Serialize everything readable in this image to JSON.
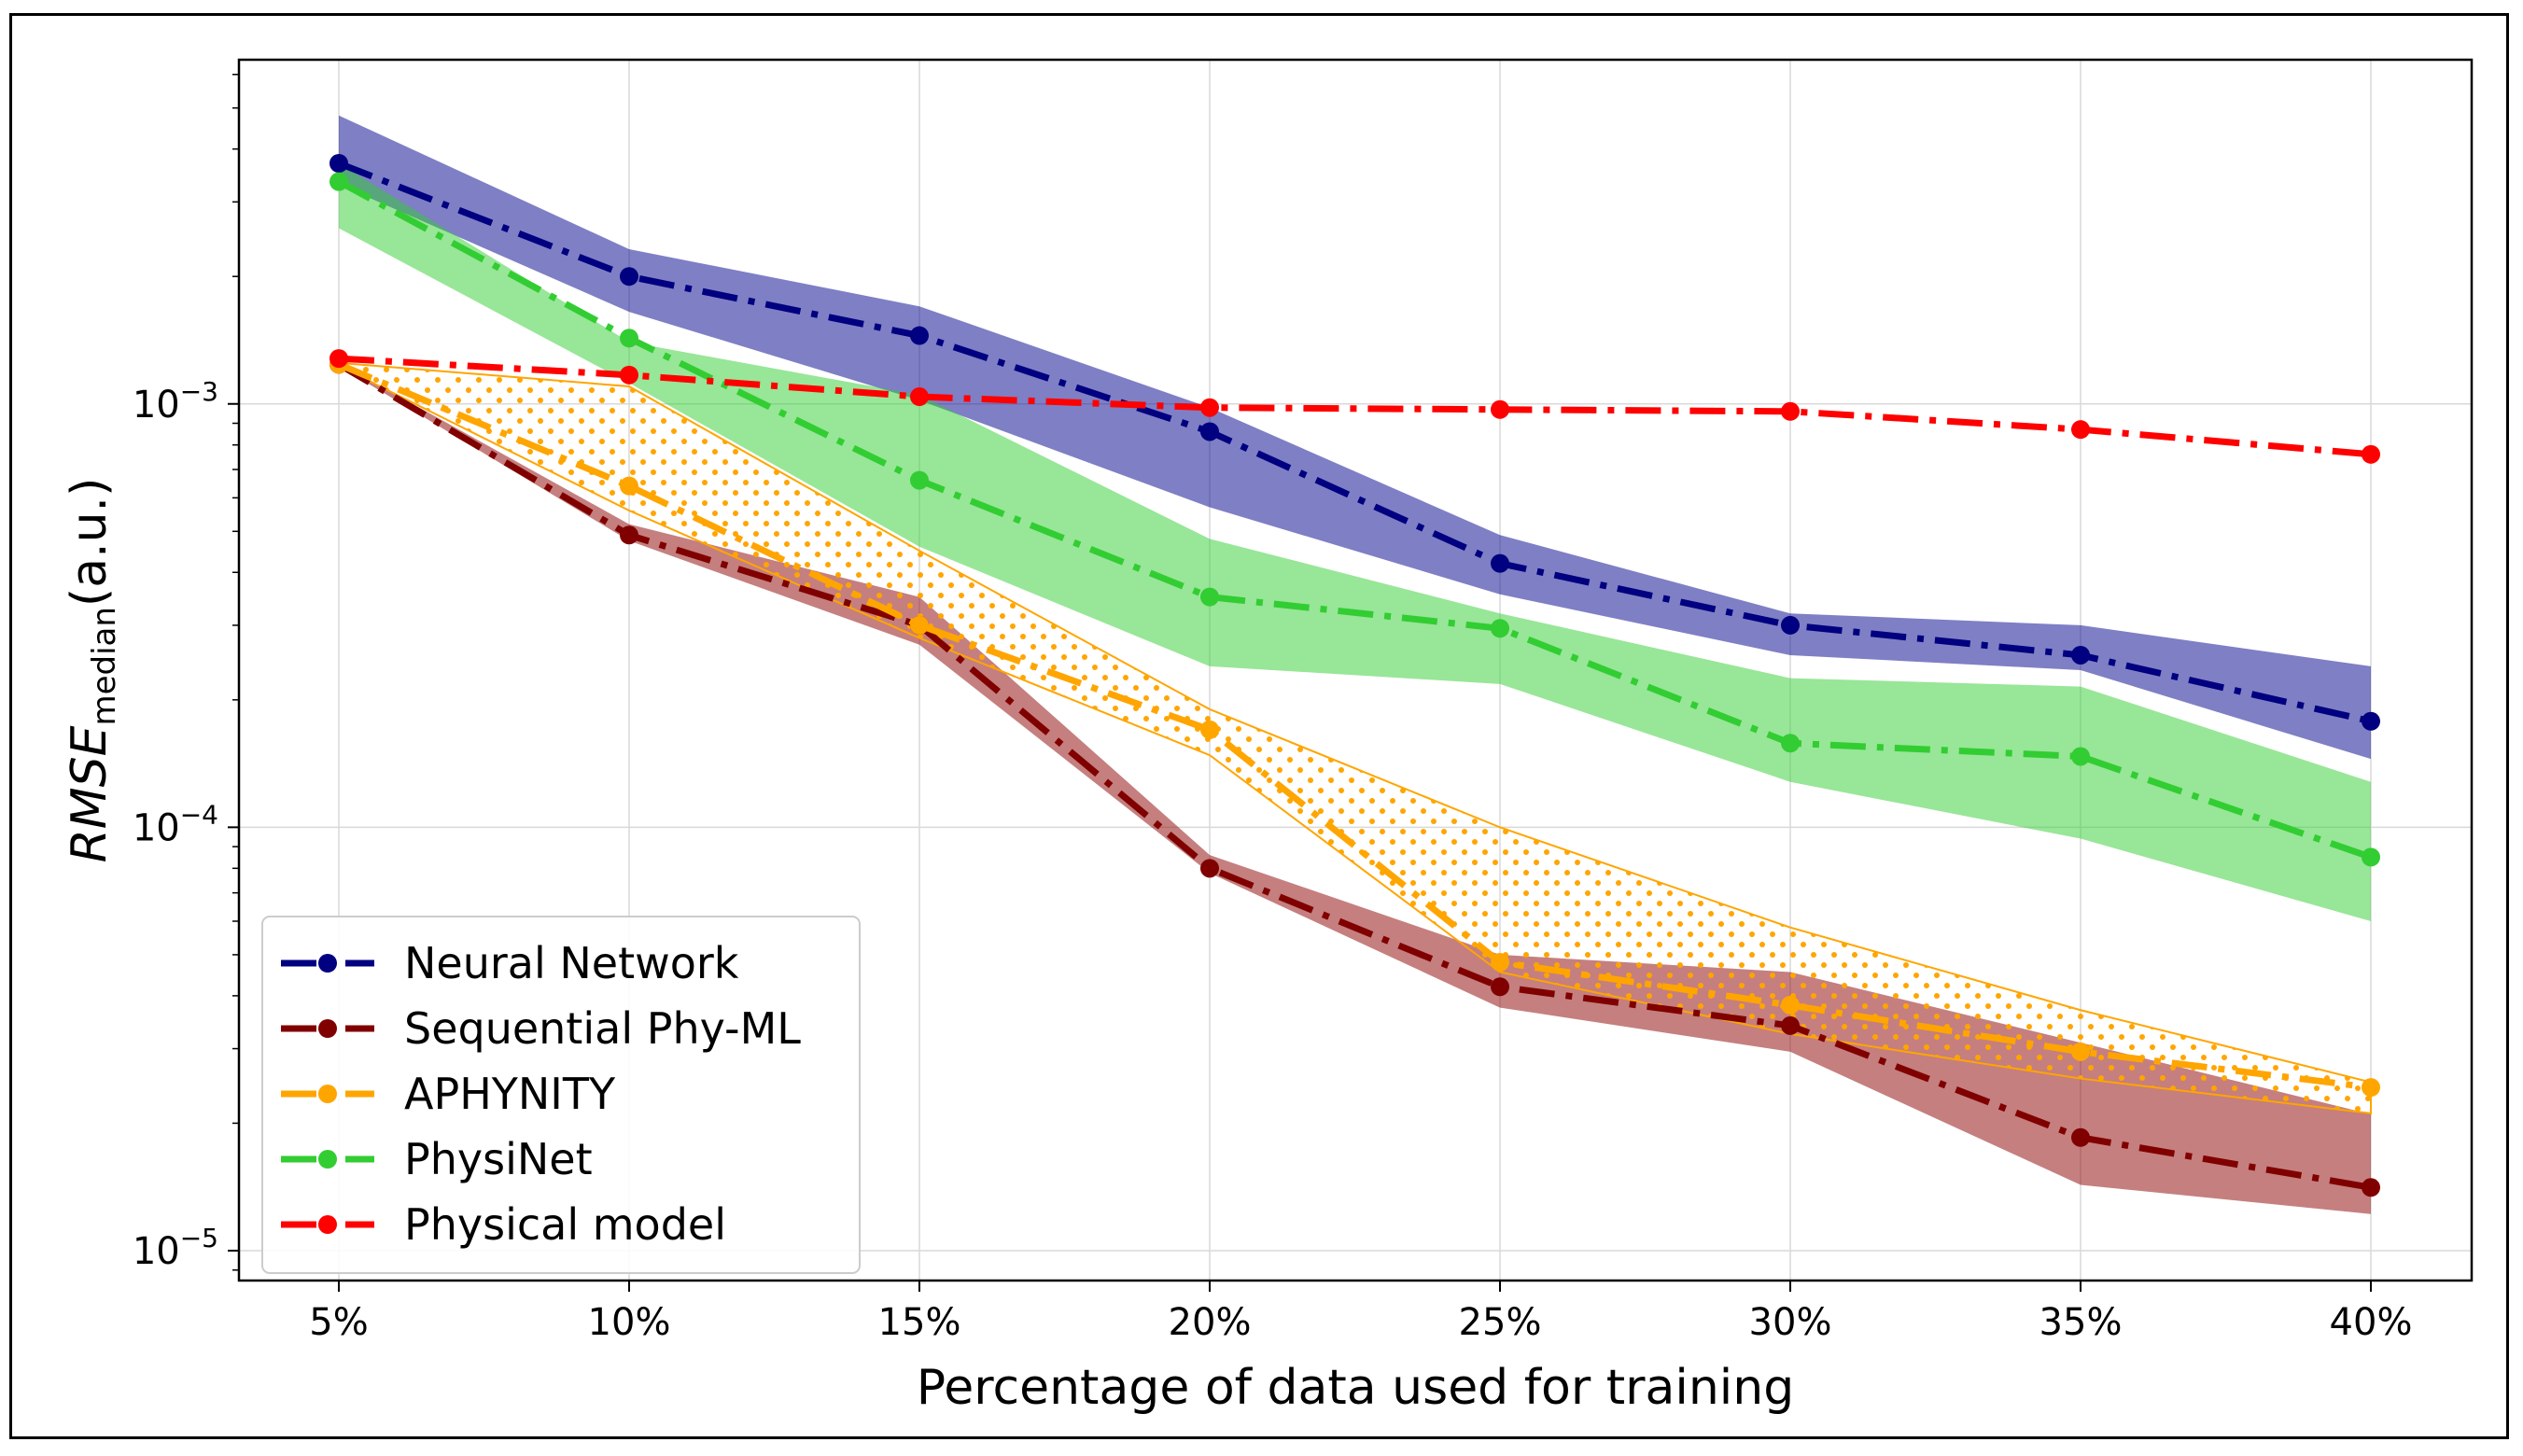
{
  "chart_data": {
    "type": "line",
    "title": "",
    "xlabel": "Percentage of data used for training",
    "ylabel_main": "RMSE",
    "ylabel_subscript": "median",
    "ylabel_unit": "(a.u.)",
    "yscale": "log",
    "ylim": [
      8.5e-06,
      0.0065
    ],
    "grid": true,
    "legend_position": "lower-left",
    "categories": [
      "5%",
      "10%",
      "15%",
      "20%",
      "25%",
      "30%",
      "35%",
      "40%"
    ],
    "yticks": [
      {
        "value": 0.001,
        "base": "10",
        "exp": "−3"
      },
      {
        "value": 0.0001,
        "base": "10",
        "exp": "−4"
      },
      {
        "value": 1e-05,
        "base": "10",
        "exp": "−5"
      }
    ],
    "series": [
      {
        "name": "Neural Network",
        "color": "#000080",
        "band_color": "#00008b",
        "band_style": "solid",
        "values": [
          0.0037,
          0.002,
          0.00145,
          0.00086,
          0.00042,
          0.0003,
          0.000255,
          0.000178
        ],
        "lower": [
          0.0033,
          0.00165,
          0.00102,
          0.00057,
          0.000355,
          0.000255,
          0.000235,
          0.000145
        ],
        "upper": [
          0.0048,
          0.00232,
          0.0017,
          0.00098,
          0.00049,
          0.00032,
          0.0003,
          0.00024
        ]
      },
      {
        "name": "Sequential Phy-ML",
        "color": "#800000",
        "band_color": "#8b0000",
        "band_style": "solid",
        "values": [
          0.00124,
          0.00049,
          0.0003,
          8e-05,
          4.2e-05,
          3.4e-05,
          1.85e-05,
          1.41e-05
        ],
        "lower": [
          0.00123,
          0.000475,
          0.00027,
          7.8e-05,
          3.75e-05,
          2.95e-05,
          1.43e-05,
          1.22e-05
        ],
        "upper": [
          0.00125,
          0.00052,
          0.00035,
          8.6e-05,
          5e-05,
          4.55e-05,
          3.1e-05,
          2.1e-05
        ]
      },
      {
        "name": "APHYNITY",
        "color": "#ffa500",
        "band_color": "#ffa500",
        "band_style": "dotted",
        "values": [
          0.00124,
          0.00064,
          0.0003,
          0.00017,
          4.8e-05,
          3.8e-05,
          2.95e-05,
          2.43e-05
        ],
        "lower": [
          0.00123,
          0.00056,
          0.00028,
          0.000148,
          4.55e-05,
          3.25e-05,
          2.55e-05,
          2.11e-05
        ],
        "upper": [
          0.00125,
          0.0011,
          0.00045,
          0.00019,
          0.0001,
          5.8e-05,
          3.7e-05,
          2.5e-05
        ]
      },
      {
        "name": "PhysiNet",
        "color": "#32cd32",
        "band_color": "#32cd32",
        "band_style": "solid",
        "values": [
          0.00335,
          0.00143,
          0.00066,
          0.00035,
          0.000295,
          0.000158,
          0.000147,
          8.5e-05
        ],
        "lower": [
          0.0026,
          0.00112,
          0.00046,
          0.00024,
          0.000218,
          0.000128,
          9.4e-05,
          6e-05
        ],
        "upper": [
          0.0037,
          0.0014,
          0.00105,
          0.00048,
          0.00032,
          0.000225,
          0.000215,
          0.000128
        ]
      },
      {
        "name": "Physical model",
        "color": "#ff0000",
        "band_color": "",
        "band_style": "none",
        "values": [
          0.00128,
          0.00117,
          0.00104,
          0.00098,
          0.00097,
          0.00096,
          0.00087,
          0.00076
        ]
      }
    ]
  }
}
